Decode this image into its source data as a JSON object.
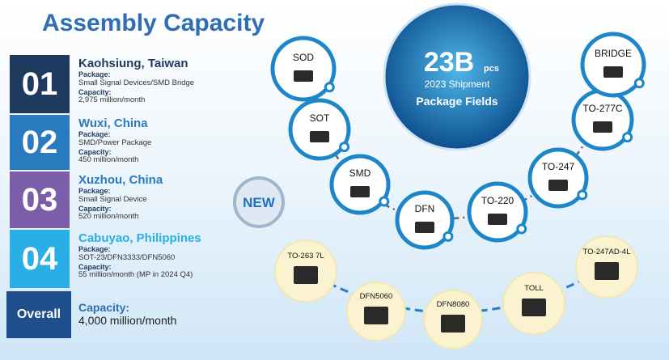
{
  "header": {
    "title": "Assembly Capacity"
  },
  "sites": [
    {
      "number": "01",
      "location": "Kaohsiung, Taiwan",
      "package_label": "Package:",
      "package": "Small Signal Devices/SMD Bridge",
      "capacity_label": "Capacity:",
      "capacity": "2,975 million/month"
    },
    {
      "number": "02",
      "location": "Wuxi, China",
      "package_label": "Package:",
      "package": "SMD/Power Package",
      "capacity_label": "Capacity:",
      "capacity": "450 million/month"
    },
    {
      "number": "03",
      "location": "Xuzhou, China",
      "package_label": "Package:",
      "package": "Small Signal Device",
      "capacity_label": "Capacity:",
      "capacity": "520 million/month"
    },
    {
      "number": "04",
      "location": "Cabuyao, Philippines",
      "package_label": "Package:",
      "package": "SOT-23/DFN3333/DFN5060",
      "capacity_label": "Capacity:",
      "capacity": "55 million/month (MP in 2024 Q4)"
    }
  ],
  "overall": {
    "label": "Overall",
    "capacity_label": "Capacity:",
    "capacity": "4,000 million/month"
  },
  "center": {
    "value": "23B",
    "unit": "pcs",
    "subtitle": "2023 Shipment",
    "caption": "Package Fields"
  },
  "new_badge": "NEW",
  "packages": [
    "SOD",
    "SOT",
    "SMD",
    "DFN",
    "TO-220",
    "TO-247",
    "TO-277C",
    "BRIDGE"
  ],
  "new_packages": [
    "TO-263 7L",
    "DFN5060",
    "DFN8080",
    "TOLL",
    "TO-247AD-4L"
  ]
}
